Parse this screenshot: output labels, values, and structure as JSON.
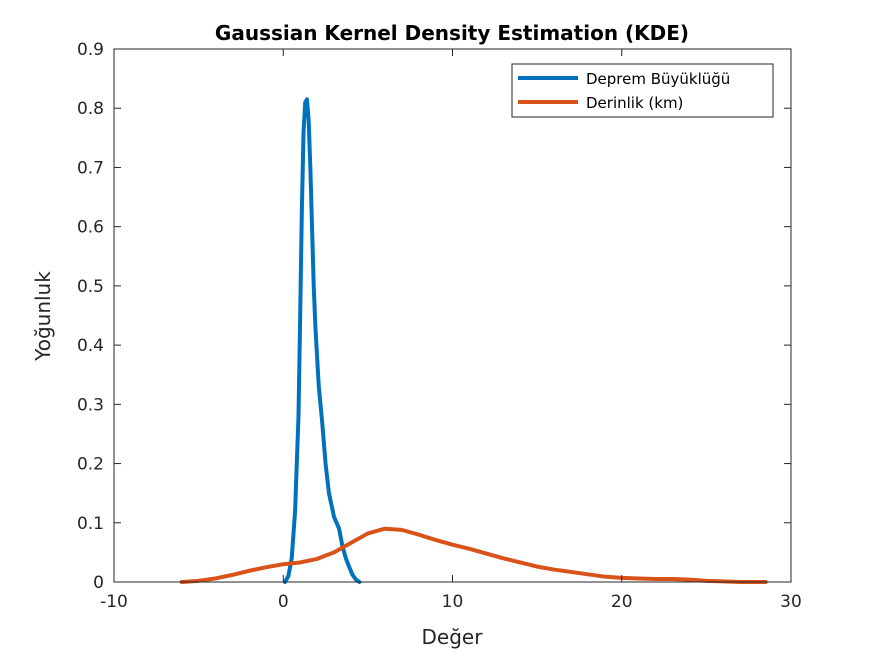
{
  "chart_data": {
    "type": "line",
    "title": "Gaussian Kernel Density Estimation (KDE)",
    "xlabel": "Değer",
    "ylabel": "Yoğunluk",
    "xlim": [
      -10,
      30
    ],
    "ylim": [
      0,
      0.9
    ],
    "xticks": [
      -10,
      0,
      10,
      20,
      30
    ],
    "xtick_labels": [
      "-10",
      "0",
      "10",
      "20",
      "30"
    ],
    "yticks": [
      0,
      0.1,
      0.2,
      0.3,
      0.4,
      0.5,
      0.6,
      0.7,
      0.8,
      0.9
    ],
    "ytick_labels": [
      "0",
      "0.1",
      "0.2",
      "0.3",
      "0.4",
      "0.5",
      "0.6",
      "0.7",
      "0.8",
      "0.9"
    ],
    "grid": false,
    "legend_position": "top-right",
    "series": [
      {
        "name": "Deprem Büyüklüğü",
        "color": "#0072BD",
        "x": [
          0.1,
          0.3,
          0.5,
          0.7,
          0.9,
          1.0,
          1.1,
          1.2,
          1.3,
          1.4,
          1.5,
          1.6,
          1.7,
          1.8,
          1.9,
          2.0,
          2.1,
          2.3,
          2.5,
          2.7,
          3.0,
          3.3,
          3.5,
          3.7,
          3.9,
          4.1,
          4.3,
          4.5
        ],
        "y": [
          0.0,
          0.01,
          0.04,
          0.12,
          0.28,
          0.45,
          0.63,
          0.76,
          0.81,
          0.815,
          0.78,
          0.7,
          0.6,
          0.5,
          0.43,
          0.38,
          0.33,
          0.27,
          0.2,
          0.15,
          0.11,
          0.09,
          0.06,
          0.04,
          0.025,
          0.012,
          0.004,
          0.0
        ]
      },
      {
        "name": "Derinlik (km)",
        "color": "#D95319",
        "x": [
          -6,
          -5,
          -4,
          -3,
          -2,
          -1,
          0,
          1,
          2,
          3,
          4,
          5,
          6,
          7,
          8,
          9,
          10,
          11,
          12,
          13,
          14,
          15,
          16,
          17,
          18,
          19,
          20,
          21,
          22,
          23,
          24,
          25,
          26,
          27,
          28,
          28.5
        ],
        "y": [
          0.0,
          0.002,
          0.006,
          0.012,
          0.019,
          0.025,
          0.03,
          0.033,
          0.039,
          0.05,
          0.066,
          0.082,
          0.09,
          0.088,
          0.08,
          0.071,
          0.063,
          0.056,
          0.048,
          0.04,
          0.033,
          0.026,
          0.021,
          0.017,
          0.013,
          0.009,
          0.007,
          0.006,
          0.005,
          0.005,
          0.004,
          0.002,
          0.001,
          0.0,
          0.0,
          0.0
        ]
      }
    ]
  }
}
